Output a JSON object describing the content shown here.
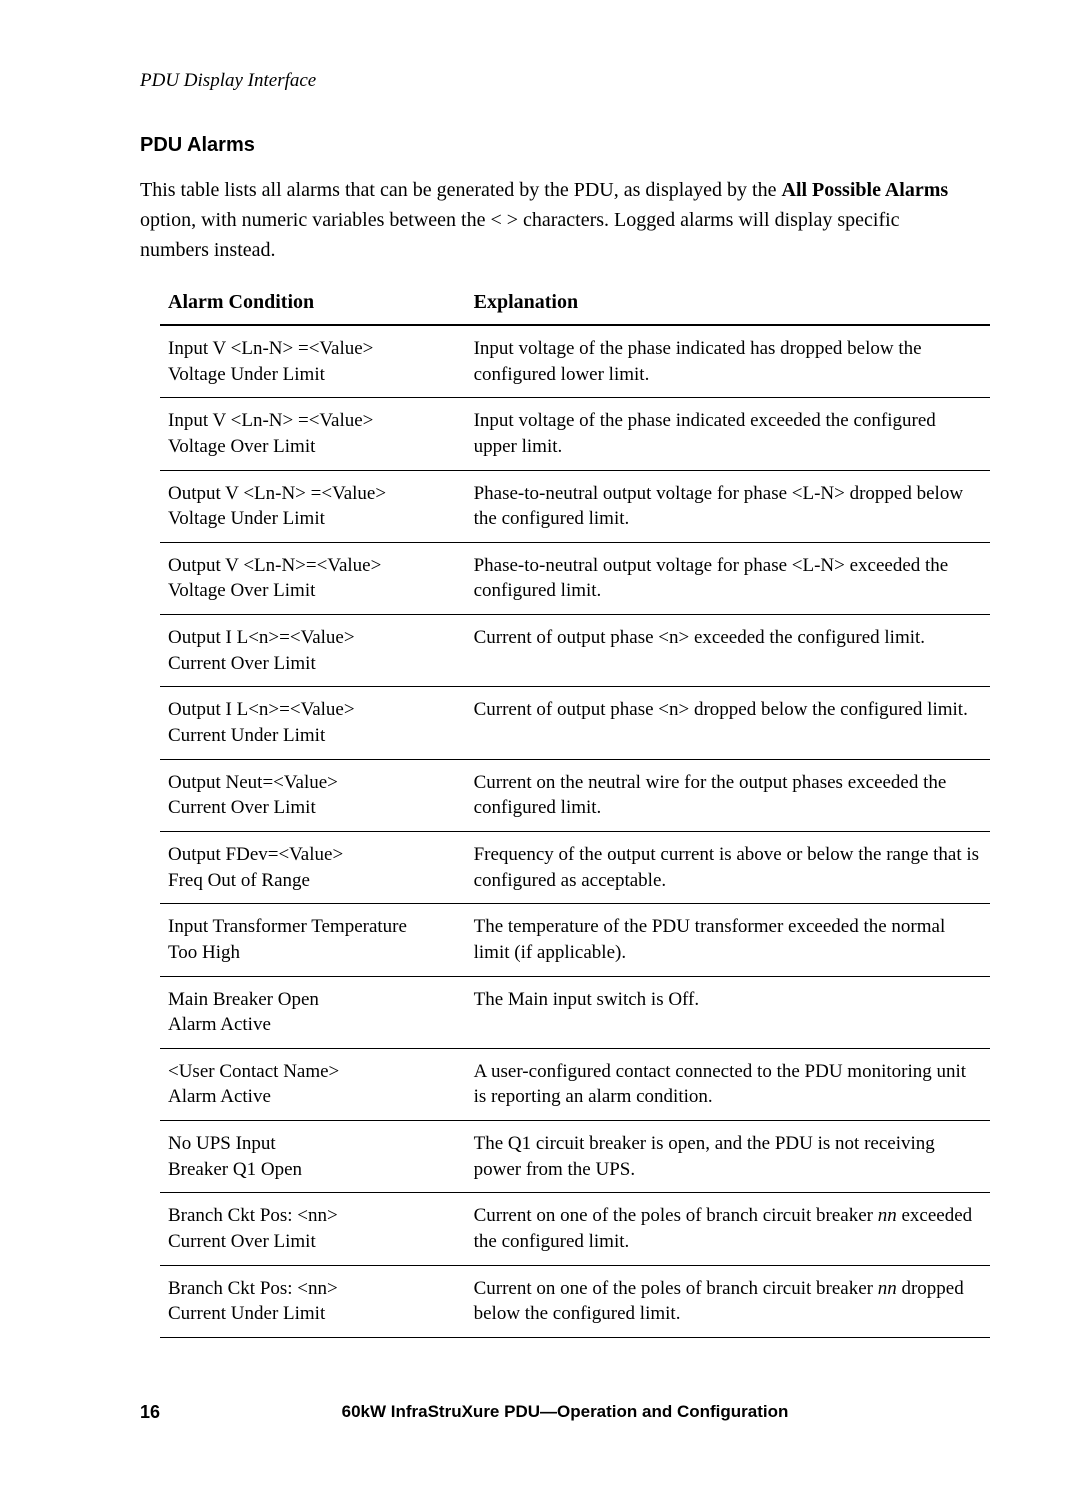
{
  "header": {
    "running_head": "PDU Display Interface"
  },
  "section": {
    "title": "PDU Alarms",
    "intro_pre": "This table lists all alarms that can be generated by the PDU, as displayed by the ",
    "intro_bold": "All Possible Alarms",
    "intro_post": " option, with numeric variables between the < > characters. Logged alarms will display specific numbers instead."
  },
  "table": {
    "head_cond": "Alarm Condition",
    "head_exp": "Explanation",
    "rows": [
      {
        "c1a": "Input V <Ln-N> =<Value>",
        "c1b": "Voltage Under Limit",
        "c2": "Input voltage of the phase indicated has dropped below the configured lower limit."
      },
      {
        "c1a": "Input V <Ln-N> =<Value>",
        "c1b": "Voltage Over Limit",
        "c2": "Input voltage of the phase indicated exceeded the configured upper limit."
      },
      {
        "c1a": "Output V <Ln-N> =<Value>",
        "c1b": "Voltage Under Limit",
        "c2": "Phase-to-neutral output voltage for phase <L-N> dropped below the configured limit."
      },
      {
        "c1a": "Output V <Ln-N>=<Value>",
        "c1b": "Voltage Over Limit",
        "c2": "Phase-to-neutral output voltage for phase <L-N> exceeded the configured limit."
      },
      {
        "c1a": "Output I L<n>=<Value>",
        "c1b": "Current Over Limit",
        "c2": "Current of output phase <n> exceeded the configured limit."
      },
      {
        "c1a": "Output I L<n>=<Value>",
        "c1b": "Current Under Limit",
        "c2": "Current of output phase <n> dropped below the configured limit."
      },
      {
        "c1a": "Output Neut=<Value>",
        "c1b": "Current Over Limit",
        "c2": "Current on the neutral wire for the output phases exceeded the configured limit."
      },
      {
        "c1a": "Output FDev=<Value>",
        "c1b": "Freq Out of Range",
        "c2": "Frequency of the output current is above or below the range that is configured as acceptable."
      },
      {
        "c1a": "Input Transformer Temperature",
        "c1b": "Too High",
        "c2": "The temperature of the PDU transformer exceeded the normal limit (if applicable)."
      },
      {
        "c1a": "Main Breaker Open",
        "c1b": "Alarm Active",
        "c2": "The Main input switch is Off."
      },
      {
        "c1a": "<User Contact Name>",
        "c1b": "Alarm Active",
        "c2": "A user-configured contact connected to the PDU monitoring unit is reporting an alarm condition."
      },
      {
        "c1a": "No UPS Input",
        "c1b": "Breaker Q1 Open",
        "c2": "The Q1 circuit breaker is open, and the PDU is not receiving power from the UPS."
      },
      {
        "c1a": "Branch Ckt Pos: <nn>",
        "c1b": "Current Over Limit",
        "c2_pre": "Current on one of the poles of branch circuit breaker ",
        "c2_it": "nn",
        "c2_post": " exceeded the configured limit."
      },
      {
        "c1a": "Branch Ckt Pos: <nn>",
        "c1b": "Current Under Limit",
        "c2_pre": "Current on one of the poles of branch circuit breaker ",
        "c2_it": "nn",
        "c2_post": " dropped below the configured limit."
      }
    ]
  },
  "footer": {
    "page": "16",
    "title": "60kW InfraStruXure PDU—Operation and Configuration"
  }
}
